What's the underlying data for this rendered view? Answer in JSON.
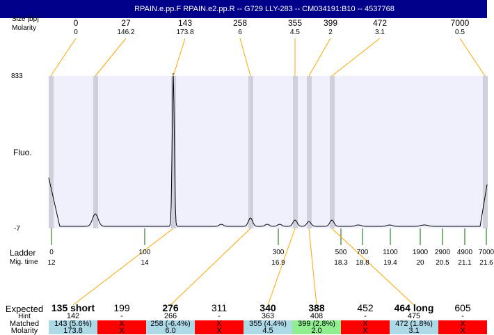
{
  "title": "RPAIN.e.pp.F  RPAIN.e2.pp.R -- G729 LLY-283 -- CM034191:B10 -- 4537768",
  "header_labels": {
    "size": "Size [bp]",
    "molarity": "Molarity"
  },
  "chart_data": {
    "type": "line",
    "ylabel": "Fluo.",
    "ylim": [
      -7,
      833
    ],
    "y_ticks": [
      "833",
      "-7"
    ],
    "peaks": [
      {
        "size": "0",
        "molarity": "0"
      },
      {
        "size": "27",
        "molarity": "146.2"
      },
      {
        "size": "143",
        "molarity": "173.8"
      },
      {
        "size": "258",
        "molarity": "6"
      },
      {
        "size": "355",
        "molarity": "4.5"
      },
      {
        "size": "399",
        "molarity": "2"
      },
      {
        "size": "472",
        "molarity": "3.1"
      },
      {
        "size": "7000",
        "molarity": "0.5"
      }
    ],
    "ladder_label": "Ladder",
    "migtime_label": "Mig. time",
    "ladder": [
      {
        "bp": "0",
        "time": "12"
      },
      {
        "bp": "100",
        "time": "14"
      },
      {
        "bp": "300",
        "time": "16.9"
      },
      {
        "bp": "500",
        "time": "18.3"
      },
      {
        "bp": "700",
        "time": "18.8"
      },
      {
        "bp": "1100",
        "time": "19.4"
      },
      {
        "bp": "1900",
        "time": "20"
      },
      {
        "bp": "2900",
        "time": "20.5"
      },
      {
        "bp": "4900",
        "time": "21.1"
      },
      {
        "bp": "7000",
        "time": "21.6"
      }
    ],
    "colors": {
      "plot_bg": "#f0f0fc",
      "band": "#d0d0dc",
      "connector": "#ffa500",
      "ladder_tick": "#006400",
      "matched": "#add8e6",
      "matched_hint": "#90ee90",
      "missing": "#ff0000"
    }
  },
  "table": {
    "labels": {
      "expected": "Expected",
      "hint": "Hint",
      "matched": "Matched",
      "molarity": "Molarity"
    },
    "columns": [
      {
        "expected": "135 short",
        "bold": true,
        "hint": "142",
        "matched": "143 (5.6%)",
        "molarity": "173.8",
        "status": "matched"
      },
      {
        "expected": "199",
        "bold": false,
        "hint": "-",
        "matched": "X",
        "molarity": "X",
        "status": "missing"
      },
      {
        "expected": "276",
        "bold": true,
        "hint": "266",
        "matched": "258 (-6.4%)",
        "molarity": "6.0",
        "status": "matched"
      },
      {
        "expected": "311",
        "bold": false,
        "hint": "-",
        "matched": "X",
        "molarity": "X",
        "status": "missing"
      },
      {
        "expected": "340",
        "bold": true,
        "hint": "363",
        "matched": "355 (4.4%)",
        "molarity": "4.5",
        "status": "matched"
      },
      {
        "expected": "388",
        "bold": true,
        "hint": "408",
        "matched": "399 (2.8%)",
        "molarity": "2.0",
        "status": "matched_hint"
      },
      {
        "expected": "452",
        "bold": false,
        "hint": "-",
        "matched": "X",
        "molarity": "X",
        "status": "missing"
      },
      {
        "expected": "464 long",
        "bold": true,
        "hint": "475",
        "matched": "472 (1.8%)",
        "molarity": "3.1",
        "status": "matched"
      },
      {
        "expected": "605",
        "bold": false,
        "hint": "-",
        "matched": "X",
        "molarity": "X",
        "status": "missing"
      }
    ]
  }
}
